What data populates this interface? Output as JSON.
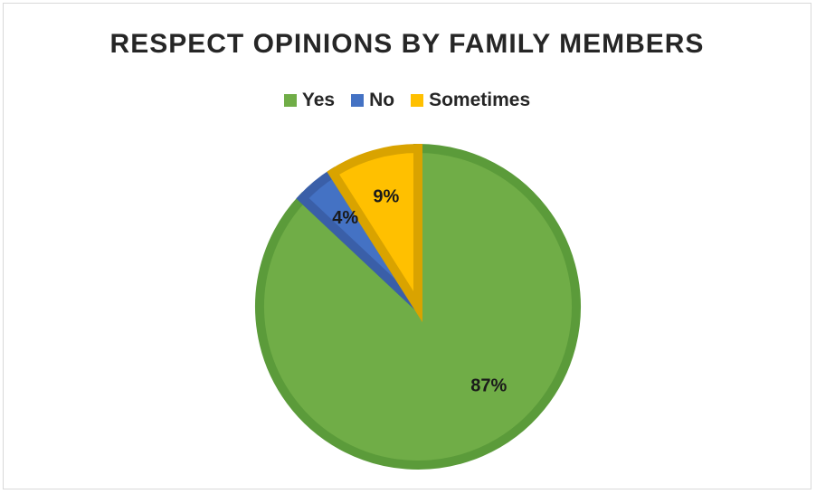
{
  "chart_data": {
    "type": "pie",
    "title": "RESPECT OPINIONS BY FAMILY MEMBERS",
    "slices": [
      {
        "label": "Yes",
        "value": 87,
        "display": "87%",
        "color": "#70ad47",
        "border": "#5b9b3a"
      },
      {
        "label": "No",
        "value": 4,
        "display": "4%",
        "color": "#4472c4",
        "border": "#3a5fa8"
      },
      {
        "label": "Sometimes",
        "value": 9,
        "display": "9%",
        "color": "#ffc000",
        "border": "#d9a300"
      }
    ],
    "legend_position": "top",
    "start_angle_deg": 0,
    "direction": "clockwise"
  }
}
